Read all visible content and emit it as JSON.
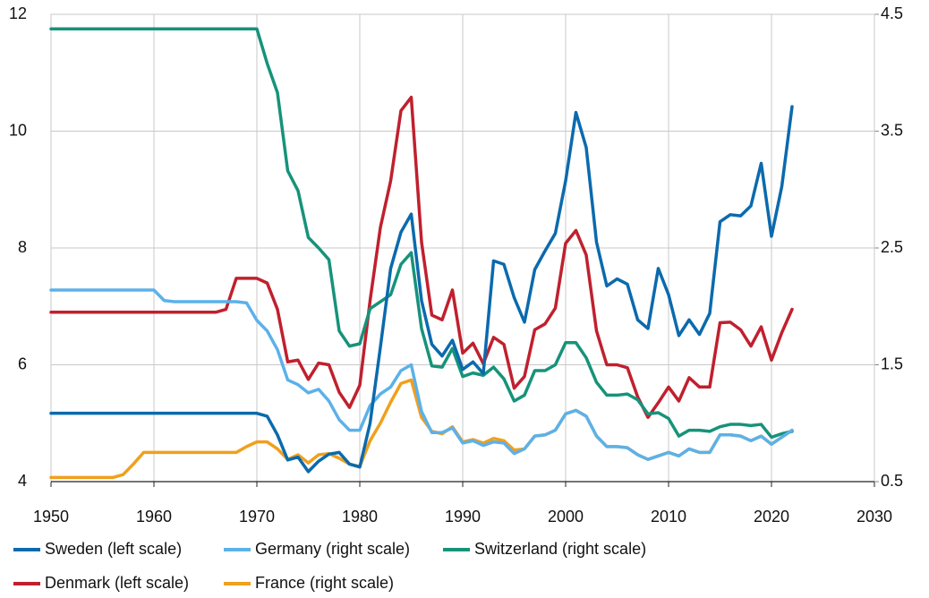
{
  "chart_data": {
    "type": "line",
    "x": [
      1950,
      1951,
      1952,
      1953,
      1954,
      1955,
      1956,
      1957,
      1958,
      1959,
      1960,
      1961,
      1962,
      1963,
      1964,
      1965,
      1966,
      1967,
      1968,
      1969,
      1970,
      1971,
      1972,
      1973,
      1974,
      1975,
      1976,
      1977,
      1978,
      1979,
      1980,
      1981,
      1982,
      1983,
      1984,
      1985,
      1986,
      1987,
      1988,
      1989,
      1990,
      1991,
      1992,
      1993,
      1994,
      1995,
      1996,
      1997,
      1998,
      1999,
      2000,
      2001,
      2002,
      2003,
      2004,
      2005,
      2006,
      2007,
      2008,
      2009,
      2010,
      2011,
      2012,
      2013,
      2014,
      2015,
      2016,
      2017,
      2018,
      2019,
      2020,
      2021,
      2022
    ],
    "xlim": [
      1950,
      2030
    ],
    "xticks": [
      1950,
      1960,
      1970,
      1980,
      1990,
      2000,
      2010,
      2020,
      2030
    ],
    "ylim": [
      4,
      12
    ],
    "yticks": [
      4,
      6,
      8,
      10,
      12
    ],
    "y2lim": [
      0.5,
      4.5
    ],
    "y2ticks": [
      0.5,
      1.5,
      2.5,
      3.5,
      4.5
    ],
    "grid": true,
    "legend": "bottom",
    "series": [
      {
        "name": "Sweden (left scale)",
        "color": "#0b6aad",
        "axis": "y",
        "values": [
          5.17,
          5.17,
          5.17,
          5.17,
          5.17,
          5.17,
          5.17,
          5.17,
          5.17,
          5.17,
          5.17,
          5.17,
          5.17,
          5.17,
          5.17,
          5.17,
          5.17,
          5.17,
          5.17,
          5.17,
          5.17,
          5.12,
          4.8,
          4.37,
          4.42,
          4.17,
          4.35,
          4.47,
          4.5,
          4.3,
          4.25,
          5.0,
          6.3,
          7.65,
          8.27,
          8.58,
          7.1,
          6.35,
          6.15,
          6.42,
          5.92,
          6.05,
          5.85,
          7.78,
          7.72,
          7.15,
          6.73,
          7.63,
          7.95,
          8.25,
          9.15,
          10.32,
          9.72,
          8.1,
          7.35,
          7.47,
          7.38,
          6.77,
          6.62,
          7.65,
          7.2,
          6.5,
          6.77,
          6.52,
          6.88,
          8.45,
          8.57,
          8.55,
          8.72,
          9.45,
          8.2,
          9.05,
          10.42
        ]
      },
      {
        "name": "Germany (right scale)",
        "color": "#5cb1e9",
        "axis": "y2",
        "values": [
          2.14,
          2.14,
          2.14,
          2.14,
          2.14,
          2.14,
          2.14,
          2.14,
          2.14,
          2.14,
          2.14,
          2.05,
          2.04,
          2.04,
          2.04,
          2.04,
          2.04,
          2.04,
          2.04,
          2.03,
          1.88,
          1.79,
          1.63,
          1.37,
          1.33,
          1.26,
          1.29,
          1.19,
          1.03,
          0.94,
          0.94,
          1.15,
          1.25,
          1.31,
          1.45,
          1.5,
          1.1,
          0.92,
          0.92,
          0.96,
          0.83,
          0.85,
          0.81,
          0.84,
          0.83,
          0.74,
          0.78,
          0.89,
          0.9,
          0.94,
          1.08,
          1.11,
          1.06,
          0.89,
          0.8,
          0.8,
          0.79,
          0.73,
          0.69,
          0.72,
          0.75,
          0.72,
          0.78,
          0.75,
          0.75,
          0.9,
          0.9,
          0.89,
          0.85,
          0.89,
          0.82,
          0.88,
          0.94
        ]
      },
      {
        "name": "Switzerland (right scale)",
        "color": "#16937a",
        "axis": "y2",
        "values": [
          4.375,
          4.375,
          4.375,
          4.375,
          4.375,
          4.375,
          4.375,
          4.375,
          4.375,
          4.375,
          4.375,
          4.375,
          4.375,
          4.375,
          4.375,
          4.375,
          4.375,
          4.375,
          4.375,
          4.375,
          4.375,
          4.08,
          3.83,
          3.16,
          2.99,
          2.59,
          2.5,
          2.4,
          1.79,
          1.66,
          1.68,
          1.98,
          2.04,
          2.1,
          2.36,
          2.46,
          1.81,
          1.49,
          1.48,
          1.64,
          1.4,
          1.43,
          1.41,
          1.48,
          1.38,
          1.19,
          1.24,
          1.45,
          1.45,
          1.5,
          1.69,
          1.69,
          1.56,
          1.35,
          1.24,
          1.24,
          1.25,
          1.2,
          1.08,
          1.09,
          1.04,
          0.89,
          0.94,
          0.94,
          0.93,
          0.97,
          0.99,
          0.99,
          0.98,
          0.99,
          0.88,
          0.91,
          0.93
        ]
      },
      {
        "name": "Denmark (left scale)",
        "color": "#c0202e",
        "axis": "y",
        "values": [
          6.9,
          6.9,
          6.9,
          6.9,
          6.9,
          6.9,
          6.9,
          6.9,
          6.9,
          6.9,
          6.9,
          6.9,
          6.9,
          6.9,
          6.9,
          6.9,
          6.9,
          6.95,
          7.48,
          7.48,
          7.48,
          7.4,
          6.95,
          6.05,
          6.08,
          5.75,
          6.03,
          6.0,
          5.53,
          5.27,
          5.65,
          7.1,
          8.35,
          9.15,
          10.35,
          10.58,
          8.1,
          6.85,
          6.77,
          7.28,
          6.2,
          6.37,
          6.02,
          6.47,
          6.35,
          5.6,
          5.8,
          6.6,
          6.7,
          6.97,
          8.08,
          8.3,
          7.88,
          6.58,
          6.0,
          6.0,
          5.95,
          5.45,
          5.1,
          5.35,
          5.62,
          5.38,
          5.78,
          5.62,
          5.62,
          6.72,
          6.73,
          6.6,
          6.32,
          6.65,
          6.08,
          6.55,
          6.95
        ]
      },
      {
        "name": "France (right scale)",
        "color": "#f0a01c",
        "axis": "y2",
        "values": [
          0.535,
          0.535,
          0.535,
          0.535,
          0.535,
          0.535,
          0.535,
          0.56,
          0.65,
          0.75,
          0.75,
          0.75,
          0.75,
          0.75,
          0.75,
          0.75,
          0.75,
          0.75,
          0.75,
          0.8,
          0.84,
          0.84,
          0.78,
          0.69,
          0.73,
          0.66,
          0.73,
          0.74,
          0.7,
          0.65,
          0.63,
          0.85,
          1.0,
          1.18,
          1.34,
          1.37,
          1.05,
          0.93,
          0.91,
          0.97,
          0.84,
          0.86,
          0.83,
          0.87,
          0.85,
          0.77,
          0.78,
          0.89,
          0.9,
          0.94,
          1.08,
          1.11,
          1.06,
          0.89,
          0.8,
          0.8,
          0.79,
          0.73,
          0.69,
          0.72,
          0.75,
          0.72,
          0.78,
          0.75,
          0.75,
          0.9,
          0.9,
          0.89,
          0.85,
          0.89,
          0.82,
          0.88,
          0.94
        ]
      }
    ]
  }
}
